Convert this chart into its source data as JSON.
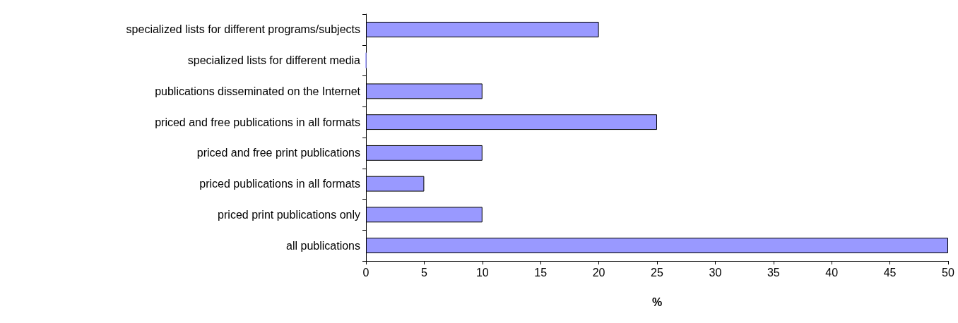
{
  "chart_data": {
    "type": "bar",
    "orientation": "horizontal",
    "xlabel": "%",
    "categories": [
      "specialized lists for different programs/subjects",
      "specialized lists for different media",
      "publications disseminated on the Internet",
      "priced and free publications in all formats",
      "priced and free print publications",
      "priced publications in all formats",
      "priced print publications only",
      "all publications"
    ],
    "values": [
      20,
      0,
      10,
      25,
      10,
      5,
      10,
      50
    ],
    "color": "#9999ff",
    "xlim": [
      0,
      50
    ],
    "xticks": [
      0,
      5,
      10,
      15,
      20,
      25,
      30,
      35,
      40,
      45,
      50
    ],
    "grid": false
  }
}
